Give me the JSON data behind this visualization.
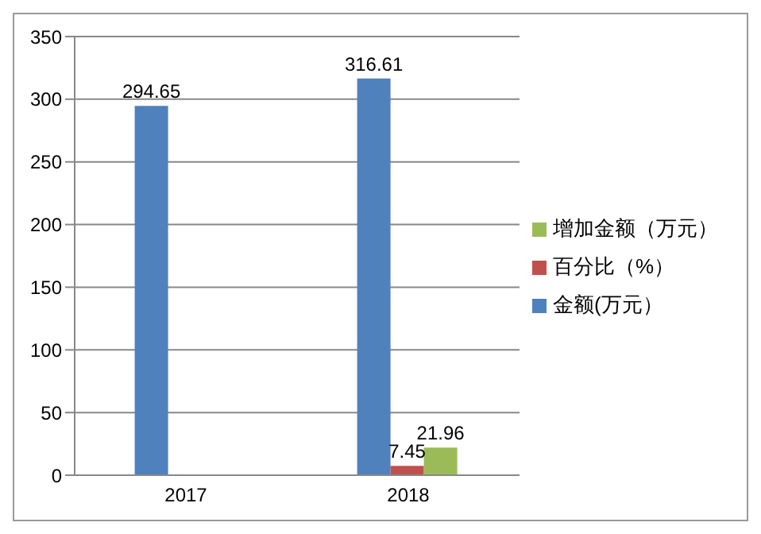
{
  "chart_data": {
    "type": "bar",
    "categories": [
      "2017",
      "2018"
    ],
    "series": [
      {
        "name": "金额(万元）",
        "color": "#4f81bd",
        "values": [
          294.65,
          316.61
        ]
      },
      {
        "name": "百分比（%）",
        "color": "#c0504d",
        "values": [
          null,
          7.45
        ]
      },
      {
        "name": "增加金额（万元）",
        "color": "#9bbb59",
        "values": [
          null,
          21.96
        ]
      }
    ],
    "ylim": [
      0,
      350
    ],
    "yticks": [
      0,
      50,
      100,
      150,
      200,
      250,
      300,
      350
    ],
    "grid": "y",
    "legend": "right",
    "data_labels": true
  }
}
